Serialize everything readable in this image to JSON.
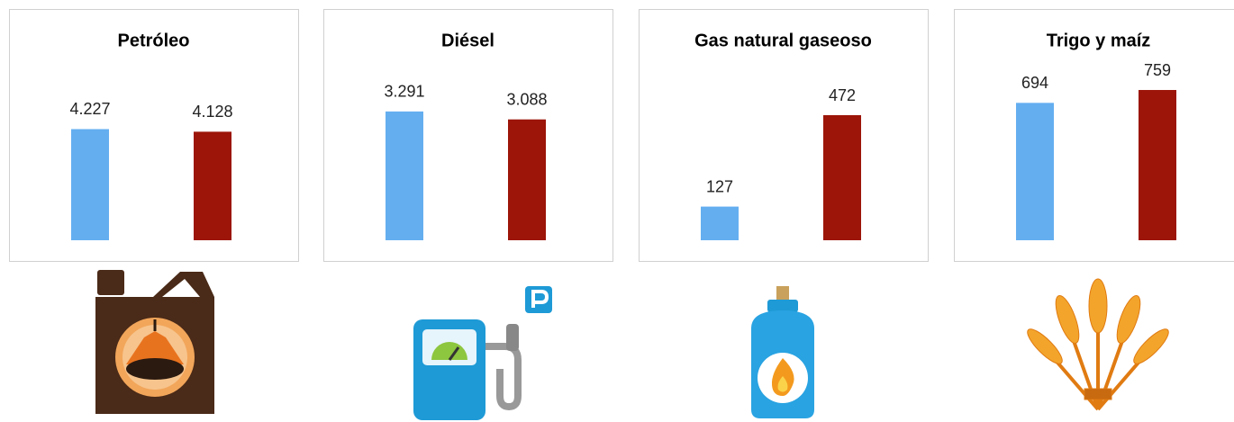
{
  "chart_data": [
    {
      "type": "bar",
      "title": "Petróleo",
      "categories": [
        null,
        null
      ],
      "values": [
        4227,
        4128
      ],
      "value_labels": [
        "4.227",
        "4.128"
      ],
      "colors": [
        "#64aef0",
        "#9c1508"
      ],
      "ylim": [
        0,
        6400
      ]
    },
    {
      "type": "bar",
      "title": "Diésel",
      "categories": [
        null,
        null
      ],
      "values": [
        3291,
        3088
      ],
      "value_labels": [
        "3.291",
        "3.088"
      ],
      "colors": [
        "#64aef0",
        "#9c1508"
      ],
      "ylim": [
        0,
        4300
      ]
    },
    {
      "type": "bar",
      "title": "Gas natural gaseoso",
      "categories": [
        null,
        null
      ],
      "values": [
        127,
        472
      ],
      "value_labels": [
        "127",
        "472"
      ],
      "colors": [
        "#64aef0",
        "#9c1508"
      ],
      "ylim": [
        0,
        635
      ]
    },
    {
      "type": "bar",
      "title": "Trigo y maíz",
      "categories": [
        null,
        null
      ],
      "values": [
        694,
        759
      ],
      "value_labels": [
        "694",
        "759"
      ],
      "colors": [
        "#64aef0",
        "#9c1508"
      ],
      "ylim": [
        0,
        850
      ]
    }
  ]
}
